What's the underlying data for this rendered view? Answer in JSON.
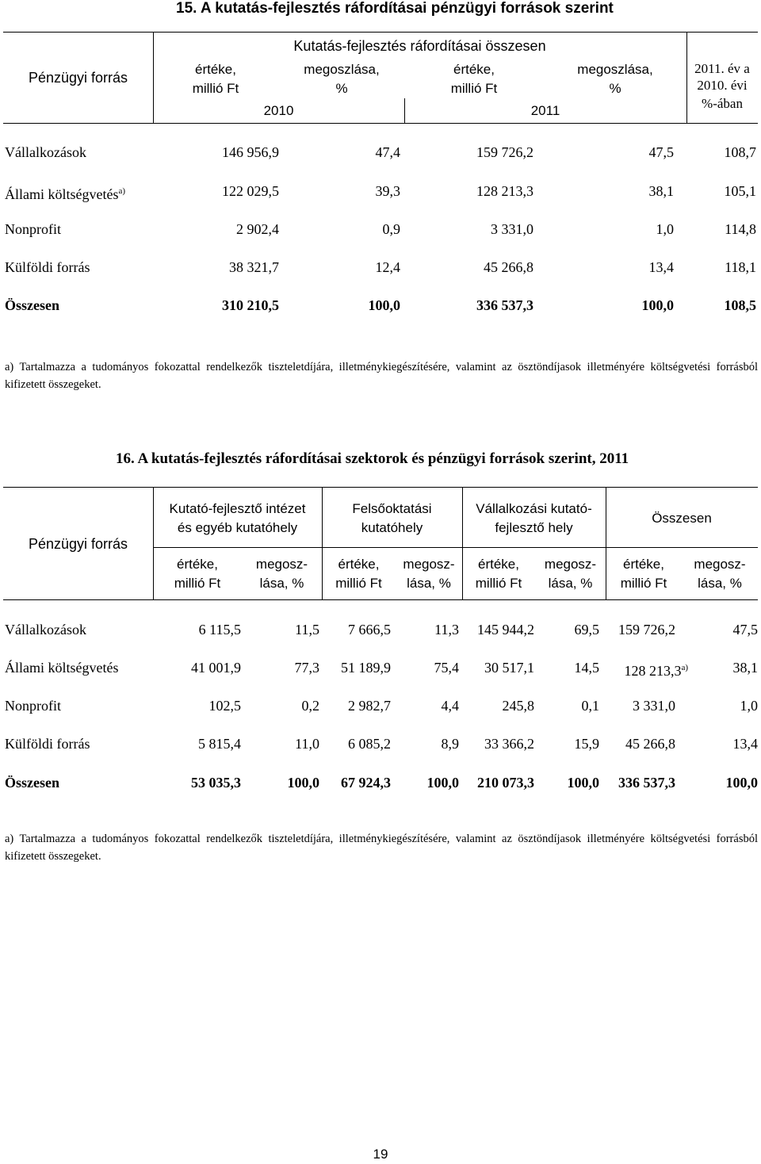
{
  "table15": {
    "title": "15.  A kutatás-fejlesztés ráfordításai pénzügyi források szerint",
    "header": {
      "row_label": "Pénzügyi forrás",
      "group": "Kutatás-fejlesztés ráfordításai összesen",
      "col1": [
        "értéke,",
        "millió Ft"
      ],
      "col2": [
        "megoszlása,",
        "%"
      ],
      "col3": [
        "értéke,",
        "millió Ft"
      ],
      "col4": [
        "megoszlása,",
        "%"
      ],
      "col5": [
        "2011. év a",
        "2010. évi",
        "%-ában"
      ],
      "year1": "2010",
      "year2": "2011"
    },
    "rows": [
      {
        "label": "Vállalkozások",
        "sup": "",
        "v": [
          "146 956,9",
          "47,4",
          "159 726,2",
          "47,5",
          "108,7"
        ]
      },
      {
        "label": "Állami költségvetés",
        "sup": "a)",
        "v": [
          "122 029,5",
          "39,3",
          "128 213,3",
          "38,1",
          "105,1"
        ]
      },
      {
        "label": "Nonprofit",
        "sup": "",
        "v": [
          "2 902,4",
          "0,9",
          "3 331,0",
          "1,0",
          "114,8"
        ]
      },
      {
        "label": "Külföldi forrás",
        "sup": "",
        "v": [
          "38 321,7",
          "12,4",
          "45 266,8",
          "13,4",
          "118,1"
        ]
      },
      {
        "label": "Összesen",
        "sup": "",
        "v": [
          "310 210,5",
          "100,0",
          "336 537,3",
          "100,0",
          "108,5"
        ]
      }
    ],
    "note": "a) Tartalmazza a tudományos fokozattal rendelkezők tiszteletdíjára, illetménykiegészítésére, valamint az ösztöndíjasok illetményére költségvetési forrásból kifizetett összegeket."
  },
  "table16": {
    "title": "16. A kutatás-fejlesztés ráfordításai szektorok és pénzügyi források szerint, 2011",
    "header": {
      "row_label": "Pénzügyi forrás",
      "groups": [
        [
          "Kutató-fejlesztő intézet",
          "és egyéb kutatóhely"
        ],
        [
          "Felsőoktatási",
          "kutatóhely"
        ],
        [
          "Vállalkozási kutató-",
          "fejlesztő hely"
        ],
        [
          "Összesen"
        ]
      ],
      "value_col": [
        "értéke,",
        "millió Ft"
      ],
      "share_col": [
        "megosz-",
        "lása, %"
      ]
    },
    "rows": [
      {
        "label": "Vállalkozások",
        "v": [
          "6 115,5",
          "11,5",
          "7 666,5",
          "11,3",
          "145 944,2",
          "69,5",
          "159 726,2",
          "47,5"
        ],
        "sup": ""
      },
      {
        "label": "Állami költségvetés",
        "v": [
          "41 001,9",
          "77,3",
          "51 189,9",
          "75,4",
          "30 517,1",
          "14,5",
          "128 213,3",
          "38,1"
        ],
        "sup": "a)"
      },
      {
        "label": "Nonprofit",
        "v": [
          "102,5",
          "0,2",
          "2 982,7",
          "4,4",
          "245,8",
          "0,1",
          "3 331,0",
          "1,0"
        ],
        "sup": ""
      },
      {
        "label": "Külföldi forrás",
        "v": [
          "5 815,4",
          "11,0",
          "6 085,2",
          "8,9",
          "33 366,2",
          "15,9",
          "45 266,8",
          "13,4"
        ],
        "sup": ""
      },
      {
        "label": "Összesen",
        "v": [
          "53 035,3",
          "100,0",
          "67 924,3",
          "100,0",
          "210 073,3",
          "100,0",
          "336 537,3",
          "100,0"
        ],
        "sup": ""
      }
    ],
    "note": "a) Tartalmazza a tudományos fokozattal rendelkezők tiszteletdíjára, illetménykiegészítésére, valamint az ösztöndíjasok illetményére költségvetési forrásból kifizetett összegeket."
  },
  "page_number": "19"
}
